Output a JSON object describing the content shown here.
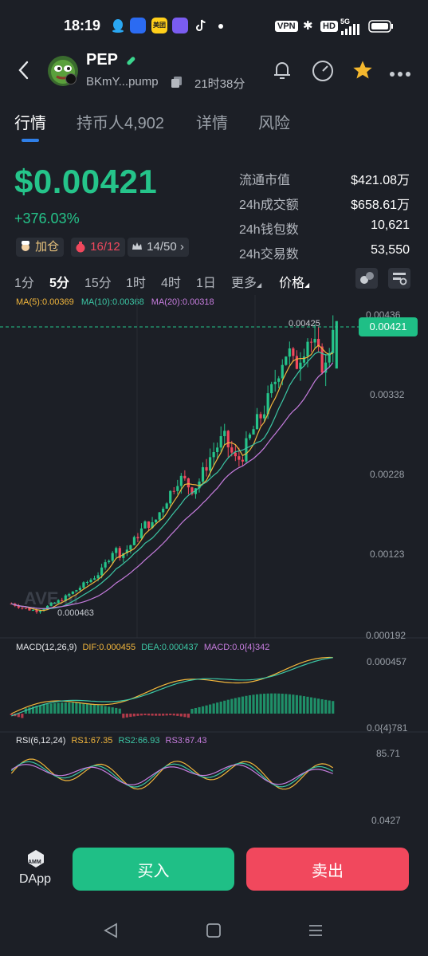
{
  "status_bar": {
    "time": "18:19",
    "vpn": "VPN",
    "hd": "HD",
    "network": "5G",
    "meituan": "美团"
  },
  "header": {
    "symbol": "PEP",
    "address": "BKmY...pump",
    "age": "21时38分"
  },
  "tabs": [
    {
      "label": "行情",
      "active": true
    },
    {
      "label": "持币人4,902",
      "active": false
    },
    {
      "label": "详情",
      "active": false
    },
    {
      "label": "风险",
      "active": false
    }
  ],
  "price": {
    "value": "$0.00421",
    "change": "+376.03%",
    "color_up": "#25c48a"
  },
  "badges": {
    "add_position": "加仓",
    "bag_red": "16",
    "bag_sep": "/",
    "bag_total": "12",
    "crown": "14/50"
  },
  "stats": [
    {
      "label": "流通市值",
      "value": "$421.08万"
    },
    {
      "label": "24h成交额",
      "value": "$658.61万"
    },
    {
      "label": "24h钱包数",
      "value": "10,621"
    },
    {
      "label": "24h交易数",
      "value": "53,550"
    }
  ],
  "intervals": [
    {
      "label": "1分",
      "active": false
    },
    {
      "label": "5分",
      "active": true
    },
    {
      "label": "15分",
      "active": false
    },
    {
      "label": "1时",
      "active": false
    },
    {
      "label": "4时",
      "active": false
    },
    {
      "label": "1日",
      "active": false
    },
    {
      "label": "更多",
      "active": false
    },
    {
      "label": "价格",
      "active": false
    }
  ],
  "ma_legend": {
    "ma5": "MA(5):0.00369",
    "ma10": "MA(10):0.00368",
    "ma20": "MA(20):0.00318",
    "ma5_color": "#f2b63c",
    "ma10_color": "#3cc7a5",
    "ma20_color": "#c77ddf"
  },
  "price_axis": {
    "current": "0.00421",
    "high_marker": "0.00425",
    "low_marker": "0.000463",
    "ticks": [
      "0.00436",
      "0.00332",
      "0.00228",
      "0.00123",
      "0.000192"
    ]
  },
  "macd": {
    "label": "MACD(12,26,9)",
    "dif": "DIF:0.000455",
    "dea": "DEA:0.000437",
    "macd": "MACD:0.0{4}342",
    "top": "0.000457",
    "bottom": "0.0{4}781"
  },
  "rsi": {
    "label": "RSI(6,12,24)",
    "rs1": "RS1:67.35",
    "rs2": "RS2:66.93",
    "rs3": "RS3:67.43",
    "top": "85.71",
    "bottom": "0.0427"
  },
  "watermark": "AVE.ai",
  "chart_data": {
    "type": "candlestick",
    "title": "",
    "ylim": [
      0.000192,
      0.00436
    ],
    "y_ticks": [
      0.00436,
      0.00332,
      0.00228,
      0.00123,
      0.000192
    ],
    "current_price": 0.00421,
    "period_high": 0.00425,
    "period_low": 0.000463,
    "ma": {
      "MA5": 0.00369,
      "MA10": 0.00368,
      "MA20": 0.00318
    },
    "close_trend": [
      0.00058,
      0.00055,
      0.00052,
      0.0005,
      0.00049,
      0.00052,
      0.00056,
      0.0006,
      0.00064,
      0.0007,
      0.00075,
      0.00081,
      0.00087,
      0.00093,
      0.001,
      0.00115,
      0.0013,
      0.0012,
      0.00128,
      0.00138,
      0.0015,
      0.00162,
      0.00158,
      0.00175,
      0.0019,
      0.00205,
      0.0022,
      0.00215,
      0.00205,
      0.00212,
      0.0023,
      0.00248,
      0.0026,
      0.00272,
      0.00255,
      0.0024,
      0.0025,
      0.0027,
      0.00288,
      0.00302,
      0.0032,
      0.00345,
      0.0037,
      0.00385,
      0.0036,
      0.0038,
      0.004,
      0.0039,
      0.0037,
      0.0036,
      0.00421
    ],
    "grid": true,
    "legend": "top-left"
  },
  "actions": {
    "dapp": "DApp",
    "amm": "AMM",
    "buy": "买入",
    "sell": "卖出"
  }
}
